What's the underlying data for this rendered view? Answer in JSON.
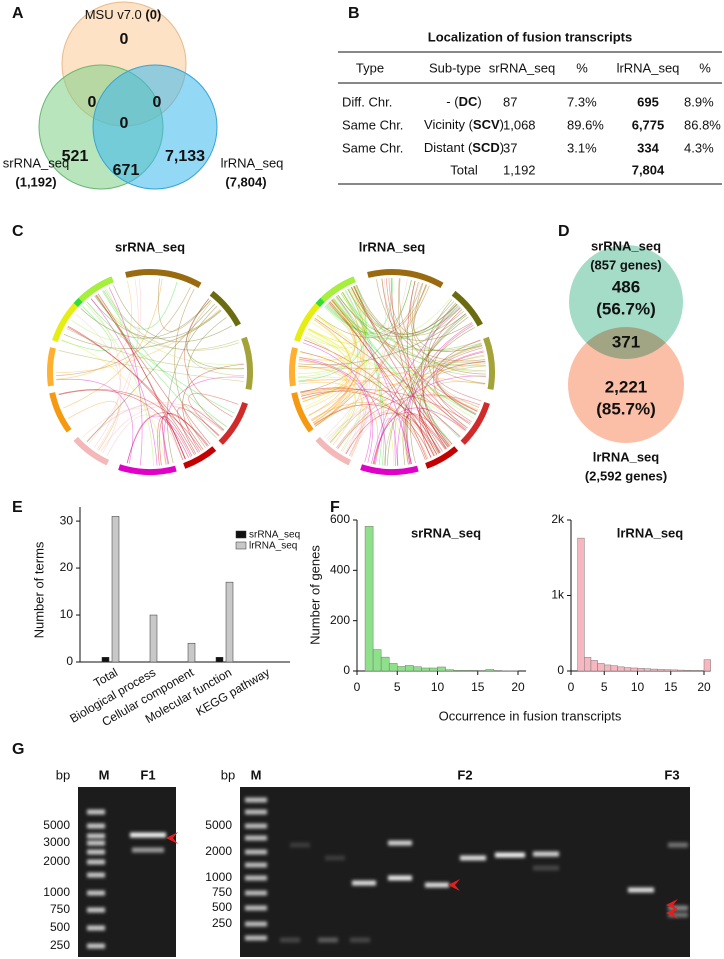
{
  "panel_labels": [
    "A",
    "B",
    "C",
    "D",
    "E",
    "F",
    "G"
  ],
  "venn_a": {
    "top_label": [
      "MSU v7.0 ",
      "(0)"
    ],
    "regions": {
      "top": "0",
      "top_sr": "0",
      "top_lr": "0",
      "center": "0",
      "sr_only": "521",
      "sr_lr": "671",
      "lr_only": "7,133"
    },
    "sr_label": "srRNA_seq",
    "sr_total": "(1,192)",
    "lr_label": "lrRNA_seq",
    "lr_total": "(7,804)"
  },
  "table_b": {
    "title": "Localization of fusion transcripts",
    "header": [
      "Type",
      "Sub-type",
      "srRNA_seq",
      "%",
      "lrRNA_seq",
      "%"
    ],
    "rows": [
      {
        "type": "Diff. Chr.",
        "subtype": [
          "- (",
          "DC",
          ")"
        ],
        "sr": "87",
        "sr_pct": "7.3%",
        "lr": "695",
        "lr_pct": "8.9%"
      },
      {
        "type": "Same Chr.",
        "subtype": [
          "Vicinity (",
          "SCV",
          ")"
        ],
        "sr": "1,068",
        "sr_pct": "89.6%",
        "lr": "6,775",
        "lr_pct": "86.8%"
      },
      {
        "type": "Same Chr.",
        "subtype": [
          "Distant (",
          "SCD",
          ")"
        ],
        "sr": "37",
        "sr_pct": "3.1%",
        "lr": "334",
        "lr_pct": "4.3%"
      }
    ],
    "total": {
      "label": "Total",
      "sr": "1,192",
      "lr": "7,804"
    }
  },
  "circos_c": {
    "titles": [
      "srRNA_seq",
      "lrRNA_seq"
    ]
  },
  "venn_d": {
    "sr_label": "srRNA_seq",
    "sr_genes": "(857 genes)",
    "sr_only": "486",
    "sr_only_pct": "(56.7%)",
    "shared": "371",
    "lr_only": "2,221",
    "lr_only_pct": "(85.7%)",
    "lr_label": "lrRNA_seq",
    "lr_genes": "(2,592 genes)"
  },
  "chart_data": [
    {
      "type": "bar",
      "y_label": "Number of terms",
      "categories": [
        "Total",
        "Biological process",
        "Cellular component",
        "Molecular function",
        "KEGG pathway"
      ],
      "series": [
        {
          "name": "srRNA_seq",
          "color": "#111111",
          "values": [
            1,
            0,
            0,
            1,
            0
          ]
        },
        {
          "name": "lrRNA_seq",
          "color": "#c8c8c8",
          "values": [
            31,
            10,
            4,
            17,
            0
          ]
        }
      ],
      "ylim": [
        0,
        33
      ],
      "yticks": [
        0,
        10,
        20,
        30
      ],
      "legend": "upper right"
    },
    {
      "type": "histogram",
      "title": "srRNA_seq",
      "y_label": "Number of genes",
      "x_label": "Occurrence in fusion transcripts",
      "bins": [
        1,
        2,
        3,
        4,
        5,
        6,
        7,
        8,
        9,
        10,
        11,
        12,
        13,
        14,
        15,
        16,
        17,
        18,
        19,
        20,
        21
      ],
      "values": [
        575,
        85,
        55,
        30,
        18,
        22,
        17,
        12,
        12,
        16,
        5,
        3,
        3,
        3,
        2,
        6,
        2,
        1,
        1,
        0
      ],
      "color": "#8fe08a",
      "xlim": [
        0,
        21
      ],
      "xticks": [
        0,
        5,
        10,
        15,
        20
      ],
      "ylim": [
        0,
        600
      ],
      "yticks": [
        0,
        200,
        400,
        600
      ]
    },
    {
      "type": "histogram",
      "title": "lrRNA_seq",
      "bins": [
        1,
        2,
        3,
        4,
        5,
        6,
        7,
        8,
        9,
        10,
        11,
        12,
        13,
        14,
        15,
        16,
        17,
        18,
        19,
        20,
        21
      ],
      "values": [
        1760,
        180,
        140,
        100,
        80,
        70,
        55,
        45,
        40,
        35,
        30,
        25,
        20,
        18,
        15,
        12,
        10,
        8,
        8,
        150
      ],
      "color": "#f7b7c0",
      "xlim": [
        0,
        21
      ],
      "xticks": [
        0,
        5,
        10,
        15,
        20
      ],
      "ylim": [
        0,
        2000
      ],
      "yticks": [
        0,
        {
          "value": 1000,
          "label": "1k"
        },
        {
          "value": 2000,
          "label": "2k"
        }
      ]
    }
  ],
  "gel_g": {
    "left": {
      "bp": "bp",
      "marker": "M",
      "lanes": [
        "F1"
      ],
      "ladder": [
        "5000",
        "3000",
        "2000",
        "1000",
        "750",
        "500",
        "250"
      ]
    },
    "right": {
      "bp": "bp",
      "marker": "M",
      "lanes": [
        "F2",
        "F3"
      ],
      "ladder": [
        "5000",
        "2000",
        "1000",
        "750",
        "500",
        "250"
      ]
    }
  }
}
